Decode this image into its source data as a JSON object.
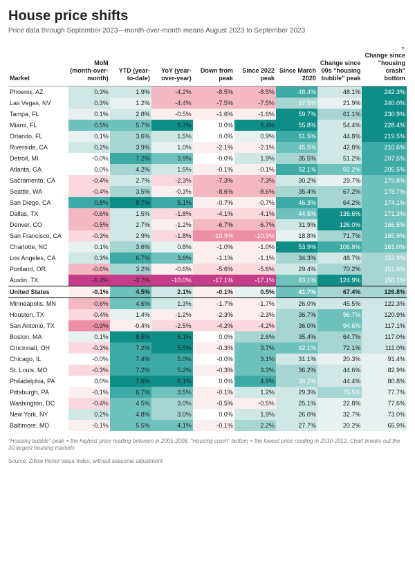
{
  "title": "House price shifts",
  "subtitle": "Price data through September 2023—month-over-month means August 2023 to September 2023",
  "columns": [
    {
      "key": "market",
      "label": "Market"
    },
    {
      "key": "mom",
      "label": "MoM (month-over-month)"
    },
    {
      "key": "ytd",
      "label": "YTD (year-to-date)"
    },
    {
      "key": "yoy",
      "label": "YoY (year-over-year)"
    },
    {
      "key": "down",
      "label": "Down from peak"
    },
    {
      "key": "s2022",
      "label": "Since 2022 peak"
    },
    {
      "key": "smar",
      "label": "Since March 2020"
    },
    {
      "key": "bubble",
      "label": "Change since 00s \"housing bubble\" peak"
    },
    {
      "key": "crash",
      "label": "Change since \"housing crash\" bottom"
    }
  ],
  "sort_indicator": "▼",
  "heat_palette": {
    "neg": [
      "#fbeeef",
      "#f9d8de",
      "#f4b8c4",
      "#ee8ea6",
      "#e85f8a",
      "#c53d8a"
    ],
    "pos": [
      "#e6f1f0",
      "#cfe7e5",
      "#a6d5d2",
      "#6fc1bd",
      "#3daaa5",
      "#0f8e88"
    ],
    "neutral": "#ffffff"
  },
  "col_ranges": {
    "mom": {
      "min": -1.5,
      "max": 1.0
    },
    "ytd": {
      "min": -4.0,
      "max": 9.0
    },
    "yoy": {
      "min": -10.0,
      "max": 6.5
    },
    "down": {
      "min": -17.5,
      "max": 0.1
    },
    "s2022": {
      "min": -17.5,
      "max": 6.0
    },
    "smar": {
      "min": 18.0,
      "max": 60.0
    },
    "bubble": {
      "min": 20.0,
      "max": 140.0
    },
    "crash": {
      "min": 65.0,
      "max": 243.0
    }
  },
  "rows": [
    {
      "market": "Phoenix, AZ",
      "mom": 0.3,
      "ytd": 1.9,
      "yoy": -4.2,
      "down": -8.5,
      "s2022": -8.5,
      "smar": 48.4,
      "bubble": 48.1,
      "crash": 242.3
    },
    {
      "market": "Las Vegas, NV",
      "mom": 0.3,
      "ytd": 1.2,
      "yoy": -4.4,
      "down": -7.5,
      "s2022": -7.5,
      "smar": 37.5,
      "bubble": 21.9,
      "crash": 240.0
    },
    {
      "market": "Tampa, FL",
      "mom": 0.1,
      "ytd": 2.8,
      "yoy": -0.5,
      "down": -1.6,
      "s2022": -1.6,
      "smar": 59.7,
      "bubble": 61.1,
      "crash": 230.9
    },
    {
      "market": "Miami, FL",
      "mom": 0.5,
      "ytd": 5.7,
      "yoy": 5.7,
      "down": 0.0,
      "s2022": 5.4,
      "smar": 55.8,
      "bubble": 54.4,
      "crash": 228.4
    },
    {
      "market": "Orlando, FL",
      "mom": 0.1,
      "ytd": 3.6,
      "yoy": 1.5,
      "down": 0.0,
      "s2022": 0.9,
      "smar": 51.5,
      "bubble": 44.8,
      "crash": 219.5
    },
    {
      "market": "Riverside, CA",
      "mom": 0.2,
      "ytd": 3.9,
      "yoy": 1.0,
      "down": -2.1,
      "s2022": -2.1,
      "smar": 45.5,
      "bubble": 42.8,
      "crash": 210.6
    },
    {
      "market": "Detroit, MI",
      "mom": -0.0,
      "ytd": 7.2,
      "yoy": 3.9,
      "down": -0.0,
      "s2022": 1.9,
      "smar": 35.5,
      "bubble": 51.2,
      "crash": 207.5
    },
    {
      "market": "Atlanta, GA",
      "mom": 0.0,
      "ytd": 4.2,
      "yoy": 1.5,
      "down": -0.1,
      "s2022": -0.1,
      "smar": 52.1,
      "bubble": 92.2,
      "crash": 205.5
    },
    {
      "market": "Sacramento, CA",
      "mom": -0.4,
      "ytd": 2.7,
      "yoy": -2.3,
      "down": -7.3,
      "s2022": -7.3,
      "smar": 30.2,
      "bubble": 29.7,
      "crash": 179.8
    },
    {
      "market": "Seattle, WA",
      "mom": -0.4,
      "ytd": 3.5,
      "yoy": -0.3,
      "down": -8.6,
      "s2022": -8.6,
      "smar": 35.4,
      "bubble": 67.2,
      "crash": 178.7
    },
    {
      "market": "San Diego, CA",
      "mom": 0.8,
      "ytd": 8.7,
      "yoy": 5.1,
      "down": -0.7,
      "s2022": -0.7,
      "smar": 46.3,
      "bubble": 64.2,
      "crash": 174.1
    },
    {
      "market": "Dallas, TX",
      "mom": -0.6,
      "ytd": 1.5,
      "yoy": -1.8,
      "down": -4.1,
      "s2022": -4.1,
      "smar": 44.5,
      "bubble": 136.6,
      "crash": 171.3
    },
    {
      "market": "Denver, CO",
      "mom": -0.5,
      "ytd": 2.7,
      "yoy": -1.2,
      "down": -6.7,
      "s2022": -6.7,
      "smar": 31.9,
      "bubble": 126.0,
      "crash": 166.5
    },
    {
      "market": "San Francisco, CA",
      "mom": -0.3,
      "ytd": 2.9,
      "yoy": -1.8,
      "down": -10.9,
      "s2022": -10.9,
      "smar": 18.8,
      "bubble": 71.7,
      "crash": 165.9
    },
    {
      "market": "Charlotte, NC",
      "mom": 0.1,
      "ytd": 3.6,
      "yoy": 0.8,
      "down": -1.0,
      "s2022": -1.0,
      "smar": 53.9,
      "bubble": 106.8,
      "crash": 161.0
    },
    {
      "market": "Los Angeles, CA",
      "mom": 0.3,
      "ytd": 6.7,
      "yoy": 3.6,
      "down": -1.1,
      "s2022": -1.1,
      "smar": 34.3,
      "bubble": 48.7,
      "crash": 152.9
    },
    {
      "market": "Portland, OR",
      "mom": -0.6,
      "ytd": 3.2,
      "yoy": -0.6,
      "down": -5.6,
      "s2022": -5.6,
      "smar": 29.4,
      "bubble": 70.2,
      "crash": 151.6
    },
    {
      "market": "Austin, TX",
      "mom": -1.4,
      "ytd": -3.7,
      "yoy": -10.0,
      "down": -17.1,
      "s2022": -17.1,
      "smar": 43.1,
      "bubble": 124.9,
      "crash": 150.1
    },
    {
      "market": "United States",
      "mom": -0.1,
      "ytd": 4.5,
      "yoy": 2.1,
      "down": -0.1,
      "s2022": 0.5,
      "smar": 41.7,
      "bubble": 67.4,
      "crash": 126.8,
      "is_total": true
    },
    {
      "market": "Minneapolis, MN",
      "mom": -0.6,
      "ytd": 4.6,
      "yoy": 1.3,
      "down": -1.7,
      "s2022": -1.7,
      "smar": 26.0,
      "bubble": 45.5,
      "crash": 122.3
    },
    {
      "market": "Houston, TX",
      "mom": -0.4,
      "ytd": 1.4,
      "yoy": -1.2,
      "down": -2.3,
      "s2022": -2.3,
      "smar": 36.7,
      "bubble": 96.7,
      "crash": 120.9
    },
    {
      "market": "San Antonio, TX",
      "mom": -0.9,
      "ytd": -0.4,
      "yoy": -2.5,
      "down": -4.2,
      "s2022": -4.2,
      "smar": 36.0,
      "bubble": 94.6,
      "crash": 117.1
    },
    {
      "market": "Boston, MA",
      "mom": 0.1,
      "ytd": 8.5,
      "yoy": 6.1,
      "down": 0.0,
      "s2022": 2.6,
      "smar": 35.4,
      "bubble": 64.7,
      "crash": 117.0
    },
    {
      "market": "Cincinnati, OH",
      "mom": -0.3,
      "ytd": 7.2,
      "yoy": 5.5,
      "down": -0.3,
      "s2022": 3.7,
      "smar": 42.1,
      "bubble": 72.1,
      "crash": 111.0
    },
    {
      "market": "Chicago, IL",
      "mom": -0.0,
      "ytd": 7.4,
      "yoy": 5.0,
      "down": -0.0,
      "s2022": 3.1,
      "smar": 31.1,
      "bubble": 20.3,
      "crash": 91.4
    },
    {
      "market": "St. Louis, MO",
      "mom": -0.3,
      "ytd": 7.2,
      "yoy": 5.2,
      "down": -0.3,
      "s2022": 3.3,
      "smar": 36.2,
      "bubble": 44.6,
      "crash": 82.9
    },
    {
      "market": "Philadelphia, PA",
      "mom": 0.0,
      "ytd": 7.6,
      "yoy": 6.1,
      "down": 0.0,
      "s2022": 4.9,
      "smar": 38.2,
      "bubble": 44.4,
      "crash": 80.8
    },
    {
      "market": "Pittsburgh, PA",
      "mom": -0.1,
      "ytd": 6.7,
      "yoy": 3.5,
      "down": -0.1,
      "s2022": 1.2,
      "smar": 29.3,
      "bubble": 75.5,
      "crash": 77.7
    },
    {
      "market": "Washington, DC",
      "mom": -0.4,
      "ytd": 4.5,
      "yoy": 3.0,
      "down": -0.5,
      "s2022": -0.5,
      "smar": 25.1,
      "bubble": 22.8,
      "crash": 77.6
    },
    {
      "market": "New York, NY",
      "mom": 0.2,
      "ytd": 4.8,
      "yoy": 3.0,
      "down": 0.0,
      "s2022": 1.9,
      "smar": 26.0,
      "bubble": 32.7,
      "crash": 73.0
    },
    {
      "market": "Baltimore, MD",
      "mom": -0.1,
      "ytd": 5.5,
      "yoy": 4.1,
      "down": -0.1,
      "s2022": 2.2,
      "smar": 27.7,
      "bubble": 20.2,
      "crash": 65.9
    }
  ],
  "footnote": "\"Housing bubble\" peak = the highest price reading between in 2005-2008. \"Housing crash\" bottom = the lowest price reading in 2010-2012. Chart breaks out the 30 largest housing markets",
  "source": "Source: Zillow Home Value Index, without seasonal adjustment",
  "font": {
    "title_size": 20,
    "subtitle_size": 10,
    "cell_size": 9,
    "foot_size": 8
  }
}
